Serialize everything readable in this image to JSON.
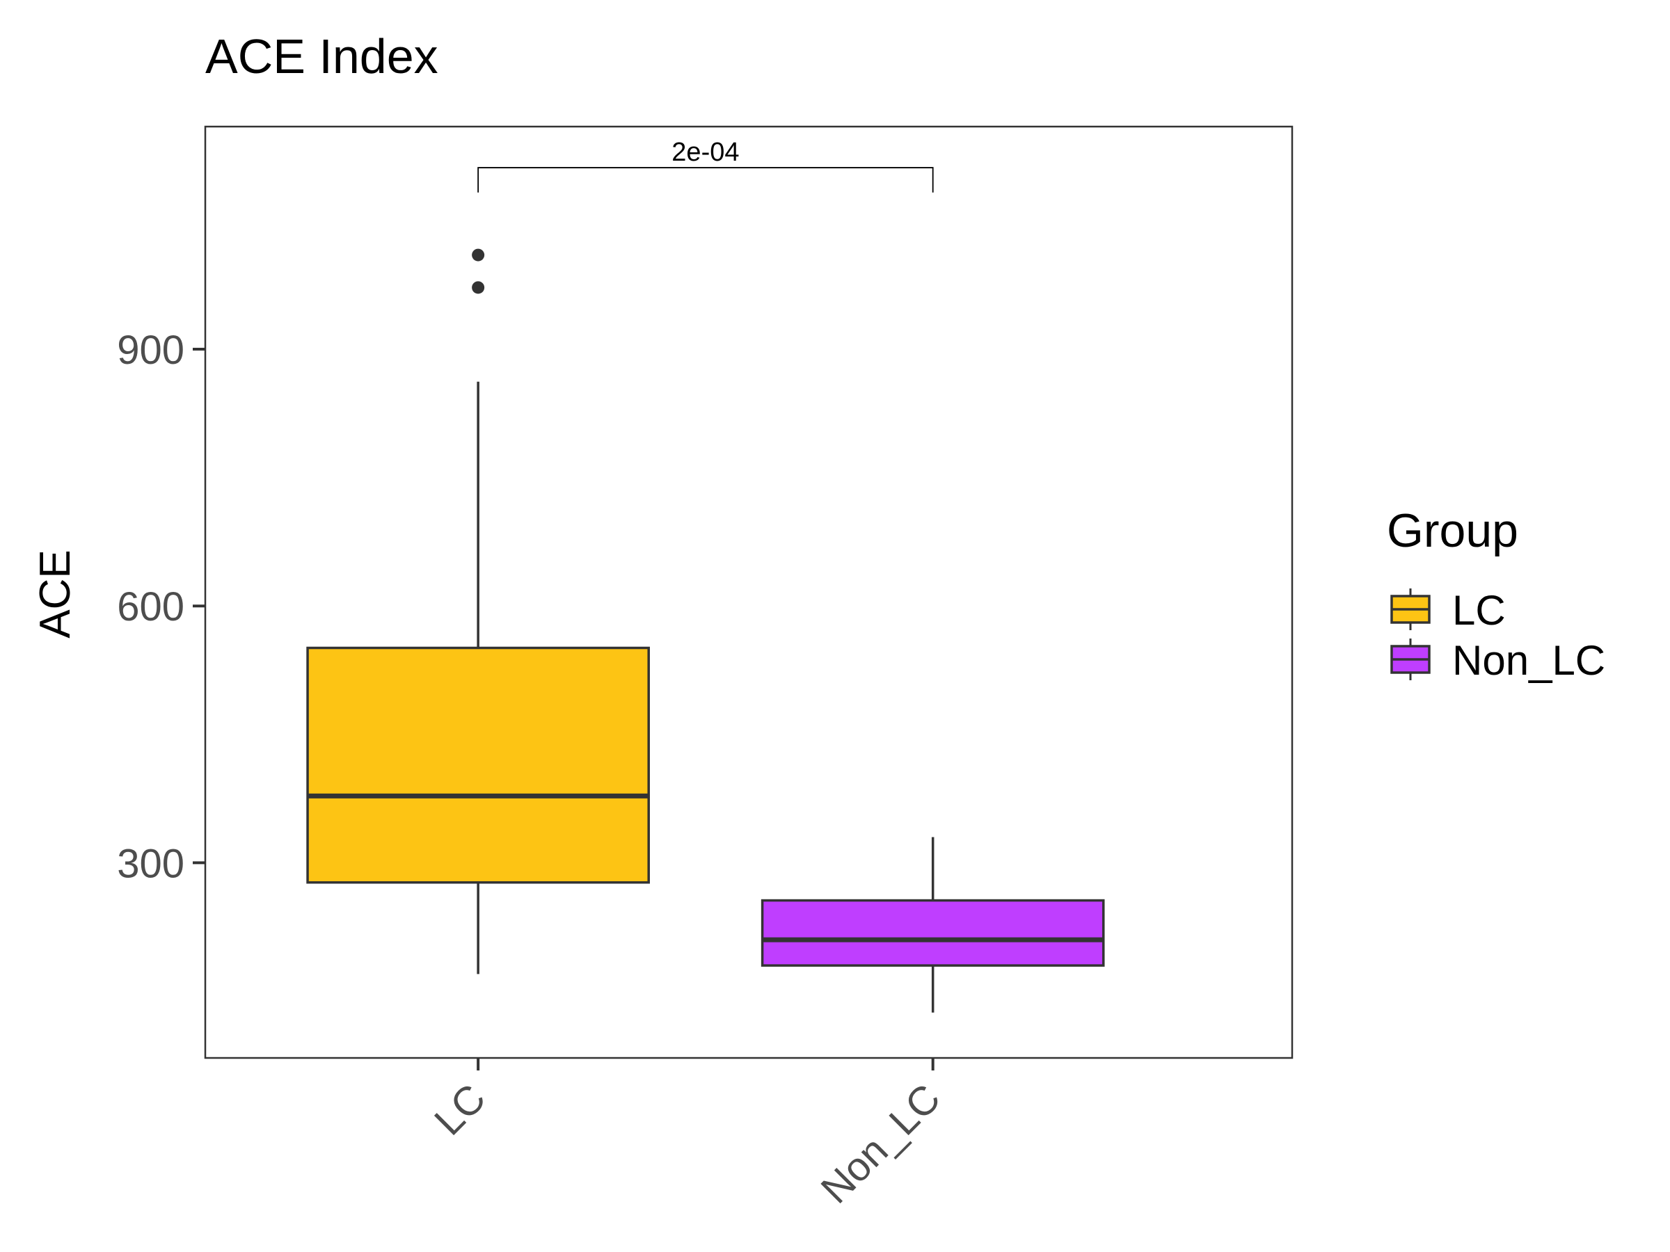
{
  "chart_data": {
    "type": "box",
    "title": "ACE Index",
    "xlabel": "",
    "ylabel": "ACE",
    "categories": [
      "LC",
      "Non_LC"
    ],
    "ylim": [
      72,
      1160
    ],
    "yticks": [
      300,
      600,
      900
    ],
    "grid": false,
    "series": [
      {
        "name": "LC",
        "color": "#FDC414",
        "stats": {
          "whisker_low": 170,
          "q1": 277,
          "median": 378,
          "q3": 551,
          "whisker_high": 862
        },
        "outliers": [
          972,
          1010
        ]
      },
      {
        "name": "Non_LC",
        "color": "#BF3EFF",
        "stats": {
          "whisker_low": 125,
          "q1": 180,
          "median": 210,
          "q3": 256,
          "whisker_high": 330
        },
        "outliers": []
      }
    ],
    "annotations": [
      {
        "type": "significance-bracket",
        "from": "LC",
        "to": "Non_LC",
        "label": "2e-04",
        "y": 1112,
        "tip_y": 1083
      }
    ],
    "legend": {
      "title": "Group",
      "position": "right",
      "items": [
        "LC",
        "Non_LC"
      ]
    }
  }
}
